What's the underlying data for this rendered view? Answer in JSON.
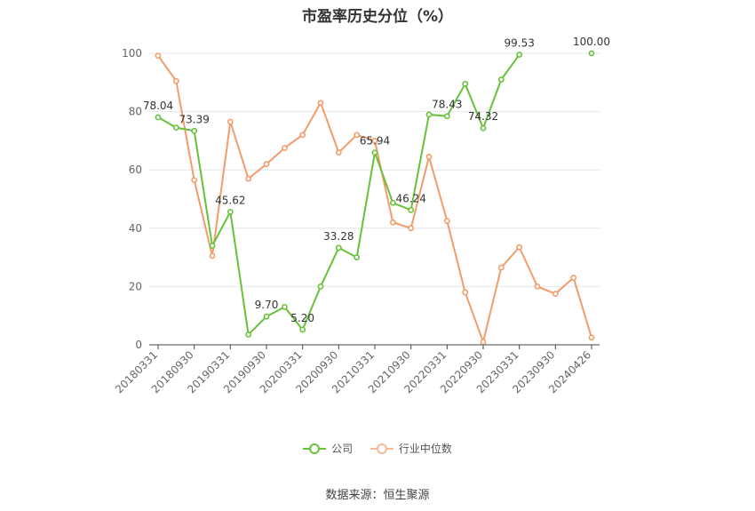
{
  "chart_data": {
    "type": "line",
    "title": "市盈率历史分位（%）",
    "ylim": [
      0,
      100
    ],
    "yticks": [
      0,
      20,
      40,
      60,
      80,
      100
    ],
    "grid": true,
    "legend_position": "bottom",
    "x": [
      "20180331",
      "20180630",
      "20180930",
      "20181231",
      "20190331",
      "20190630",
      "20190930",
      "20191231",
      "20200331",
      "20200630",
      "20200930",
      "20201231",
      "20210331",
      "20210630",
      "20210930",
      "20211231",
      "20220331",
      "20220630",
      "20220930",
      "20221231",
      "20230331",
      "20230630",
      "20230930",
      "20231231",
      "20240426"
    ],
    "x_tick_labels": [
      "20180331",
      "20180930",
      "20190331",
      "20190930",
      "20200331",
      "20200930",
      "20210331",
      "20210930",
      "20220331",
      "20220930",
      "20230331",
      "20230930",
      "20240426"
    ],
    "series": [
      {
        "name": "公司",
        "color": "#67c23a",
        "values": [
          78.04,
          74.5,
          73.39,
          34.0,
          45.62,
          3.5,
          9.7,
          13.0,
          5.2,
          20.0,
          33.28,
          30.0,
          65.94,
          48.7,
          46.24,
          79.0,
          78.43,
          89.5,
          74.32,
          91.0,
          99.53,
          null,
          null,
          null,
          100.0
        ],
        "data_labels": [
          "78.04",
          null,
          "73.39",
          null,
          "45.62",
          null,
          "9.70",
          null,
          "5.20",
          null,
          "33.28",
          null,
          "65.94",
          null,
          "46.24",
          null,
          "78.43",
          null,
          "74.32",
          null,
          "99.53",
          null,
          null,
          null,
          "100.00"
        ]
      },
      {
        "name": "行业中位数",
        "color": "#f39c6b",
        "values": [
          99.2,
          90.5,
          56.5,
          30.5,
          76.5,
          57.0,
          62.0,
          67.5,
          72.0,
          83.0,
          66.0,
          72.0,
          70.0,
          42.0,
          40.0,
          64.5,
          42.5,
          18.0,
          1.0,
          26.5,
          33.5,
          20.0,
          17.5,
          23.0,
          2.5
        ]
      }
    ]
  },
  "legend": {
    "company_label": "公司",
    "industry_label": "行业中位数"
  },
  "source": {
    "text": "数据来源：恒生聚源"
  }
}
